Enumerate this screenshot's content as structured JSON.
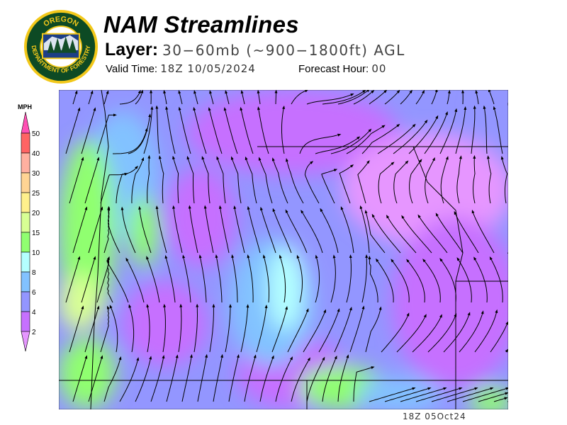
{
  "header": {
    "title": "NAM Streamlines",
    "layer_label": "Layer:",
    "layer_value": "30−60mb (~900−1800ft) AGL",
    "valid_label": "Valid Time:",
    "valid_value": "18Z 10/05/2024",
    "forecast_label": "Forecast Hour:",
    "forecast_value": "00"
  },
  "logo": {
    "text_top": "OREGON",
    "text_bottom": "DEPARTMENT OF FORESTRY"
  },
  "legend": {
    "unit": "MPH",
    "levels": [
      "2",
      "4",
      "6",
      "8",
      "10",
      "15",
      "20",
      "25",
      "30",
      "40",
      "50"
    ],
    "colors": [
      "#c670ff",
      "#9396ff",
      "#82c2ff",
      "#b4ffff",
      "#90ff70",
      "#d8ff94",
      "#fff08c",
      "#ffd494",
      "#ffb0a0",
      "#ff6464"
    ],
    "over_color": "#ff50b4",
    "under_color": "#e696ff"
  },
  "map": {
    "timestamp": "18Z 05Oct24"
  }
}
